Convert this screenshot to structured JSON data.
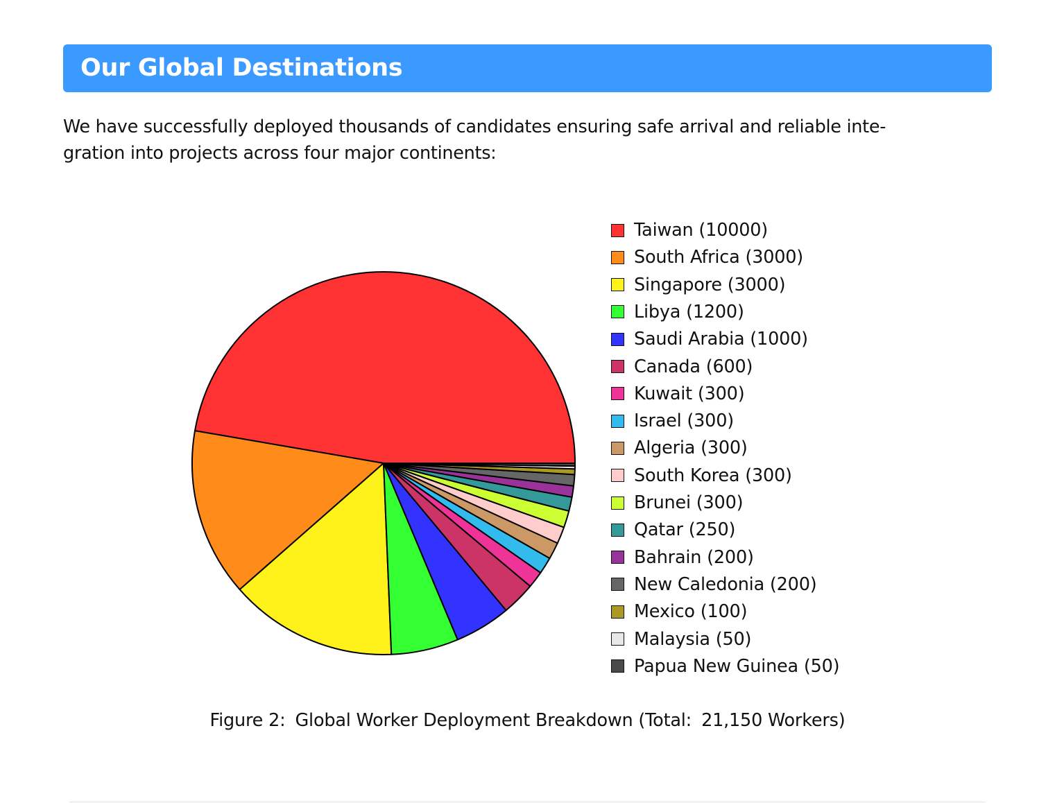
{
  "header": {
    "title": "Our Global Destinations"
  },
  "intro": {
    "line1": "We have successfully deployed thousands of candidates ensuring safe arrival and reliable inte-",
    "line2": "gration into projects across four major continents:"
  },
  "chart_data": {
    "type": "pie",
    "title": "",
    "legend_position": "right",
    "slices": [
      {
        "label": "Taiwan (10000)",
        "name": "Taiwan",
        "value": 10000,
        "color": "#ff3333"
      },
      {
        "label": "South Africa (3000)",
        "name": "South Africa",
        "value": 3000,
        "color": "#ff8c1a"
      },
      {
        "label": "Singapore (3000)",
        "name": "Singapore",
        "value": 3000,
        "color": "#fff21a"
      },
      {
        "label": "Libya (1200)",
        "name": "Libya",
        "value": 1200,
        "color": "#33ff33"
      },
      {
        "label": "Saudi Arabia (1000)",
        "name": "Saudi Arabia",
        "value": 1000,
        "color": "#3333ff"
      },
      {
        "label": "Canada (600)",
        "name": "Canada",
        "value": 600,
        "color": "#cc3366"
      },
      {
        "label": "Kuwait (300)",
        "name": "Kuwait",
        "value": 300,
        "color": "#ee3399"
      },
      {
        "label": "Israel (300)",
        "name": "Israel",
        "value": 300,
        "color": "#33bbee"
      },
      {
        "label": "Algeria (300)",
        "name": "Algeria",
        "value": 300,
        "color": "#cc9966"
      },
      {
        "label": "South Korea (300)",
        "name": "South Korea",
        "value": 300,
        "color": "#ffcccc"
      },
      {
        "label": "Brunei (300)",
        "name": "Brunei",
        "value": 300,
        "color": "#ccff33"
      },
      {
        "label": "Qatar (250)",
        "name": "Qatar",
        "value": 250,
        "color": "#339999"
      },
      {
        "label": "Bahrain (200)",
        "name": "Bahrain",
        "value": 200,
        "color": "#993399"
      },
      {
        "label": "New Caledonia (200)",
        "name": "New Caledonia",
        "value": 200,
        "color": "#666666"
      },
      {
        "label": "Mexico (100)",
        "name": "Mexico",
        "value": 100,
        "color": "#aa9922"
      },
      {
        "label": "Malaysia (50)",
        "name": "Malaysia",
        "value": 50,
        "color": "#e8e8e8"
      },
      {
        "label": "Papua New Guinea (50)",
        "name": "Papua New Guinea",
        "value": 50,
        "color": "#4a4a4a"
      }
    ]
  },
  "caption": {
    "prefix": "Figure 2:",
    "text": "Global Worker Deployment Breakdown (Total:",
    "total": "21,150 Workers)"
  }
}
